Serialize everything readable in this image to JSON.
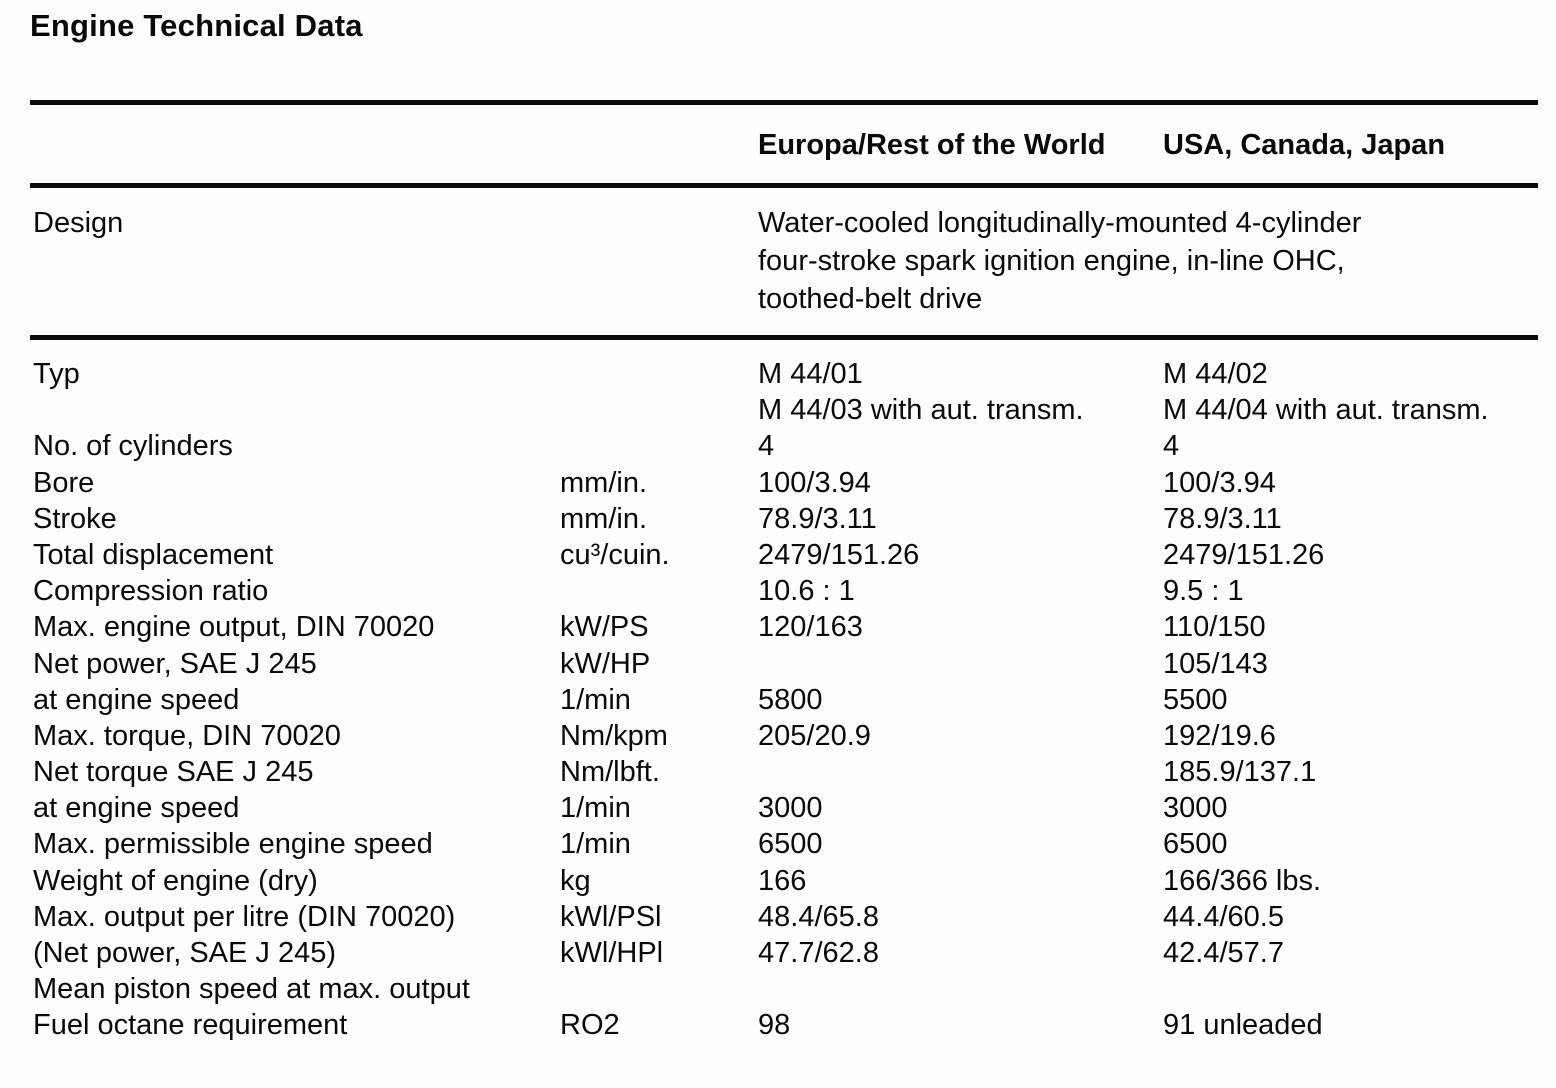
{
  "page": {
    "title": "Engine Technical Data",
    "background": "#fdfdfd",
    "text_color": "#0a0a0a"
  },
  "header": {
    "col1": "Europa/Rest of the World",
    "col2": "USA, Canada, Japan"
  },
  "design": {
    "label": "Design",
    "lines": [
      "Water-cooled longitudinally-mounted 4-cylinder",
      "four-stroke spark ignition engine, in-line OHC,",
      "toothed-belt drive"
    ]
  },
  "table": {
    "columns": [
      "label",
      "unit",
      "Europa/Rest of the World",
      "USA, Canada, Japan"
    ],
    "rows": [
      {
        "label": "Typ",
        "unit": "",
        "col1": "M 44/01",
        "col2": "M 44/02"
      },
      {
        "label": "",
        "unit": "",
        "col1": "M 44/03 with aut. transm.",
        "col2": "M 44/04 with aut. transm."
      },
      {
        "label": "No. of cylinders",
        "unit": "",
        "col1": "4",
        "col2": "4"
      },
      {
        "label": "Bore",
        "unit": "mm/in.",
        "col1": "100/3.94",
        "col2": "100/3.94"
      },
      {
        "label": "Stroke",
        "unit": "mm/in.",
        "col1": "78.9/3.11",
        "col2": "78.9/3.11"
      },
      {
        "label": "Total displacement",
        "unit": "cu³/cuin.",
        "col1": "2479/151.26",
        "col2": "2479/151.26"
      },
      {
        "label": "Compression ratio",
        "unit": "",
        "col1": "10.6 : 1",
        "col2": "9.5 : 1"
      },
      {
        "label": "Max. engine output, DIN 70020",
        "unit": "kW/PS",
        "col1": "120/163",
        "col2": "110/150"
      },
      {
        "label": "Net power, SAE J 245",
        "unit": "kW/HP",
        "col1": "",
        "col2": "105/143"
      },
      {
        "label": "at engine speed",
        "unit": "1/min",
        "col1": "5800",
        "col2": "5500"
      },
      {
        "label": "Max. torque, DIN 70020",
        "unit": "Nm/kpm",
        "col1": "205/20.9",
        "col2": "192/19.6"
      },
      {
        "label": "Net torque SAE J 245",
        "unit": "Nm/lbft.",
        "col1": "",
        "col2": "185.9/137.1"
      },
      {
        "label": "at engine speed",
        "unit": "1/min",
        "col1": "3000",
        "col2": "3000"
      },
      {
        "label": "Max. permissible engine speed",
        "unit": "1/min",
        "col1": "6500",
        "col2": "6500"
      },
      {
        "label": "Weight of engine (dry)",
        "unit": "kg",
        "col1": "166",
        "col2": "166/366 lbs."
      },
      {
        "label": "Max. output per litre (DIN 70020)",
        "unit": "kWl/PSl",
        "col1": "48.4/65.8",
        "col2": "44.4/60.5"
      },
      {
        "label": "(Net power, SAE J 245)",
        "unit": "kWl/HPl",
        "col1": "47.7/62.8",
        "col2": "42.4/57.7"
      },
      {
        "label": "Mean piston speed at max. output",
        "unit": "",
        "col1": "",
        "col2": ""
      },
      {
        "label": "Fuel octane requirement",
        "unit": "RO2",
        "col1": "98",
        "col2": "91 unleaded"
      }
    ]
  }
}
